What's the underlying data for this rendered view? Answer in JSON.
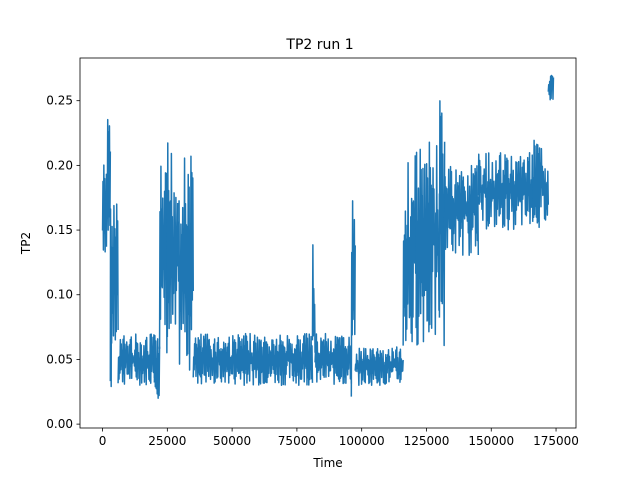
{
  "chart_data": {
    "type": "line",
    "title": "TP2 run 1",
    "xlabel": "Time",
    "ylabel": "TP2",
    "xlim": [
      -8700,
      182700
    ],
    "ylim": [
      -0.003,
      0.283
    ],
    "grid": false,
    "legend": "none",
    "x_ticks": [
      0,
      25000,
      50000,
      75000,
      100000,
      125000,
      150000,
      175000
    ],
    "x_tick_labels": [
      "0",
      "25000",
      "50000",
      "75000",
      "100000",
      "125000",
      "150000",
      "175000"
    ],
    "y_ticks": [
      0.0,
      0.05,
      0.1,
      0.15,
      0.2,
      0.25
    ],
    "y_tick_labels": [
      "0.00",
      "0.05",
      "0.10",
      "0.15",
      "0.20",
      "0.25"
    ],
    "series": [
      {
        "color": "#1f77b4",
        "segments": [
          {
            "x0": 0,
            "x1": 1500,
            "lo": 0.13,
            "hi": 0.21
          },
          {
            "x0": 1500,
            "x1": 3000,
            "lo": 0.12,
            "hi": 0.24
          },
          {
            "x0": 3000,
            "x1": 3500,
            "lo": 0.02,
            "hi": 0.17
          },
          {
            "x0": 3500,
            "x1": 6000,
            "lo": 0.05,
            "hi": 0.18
          },
          {
            "x0": 6000,
            "x1": 20000,
            "lo": 0.03,
            "hi": 0.07
          },
          {
            "x0": 20000,
            "x1": 22000,
            "lo": 0.02,
            "hi": 0.07
          },
          {
            "x0": 22000,
            "x1": 25000,
            "lo": 0.05,
            "hi": 0.2
          },
          {
            "x0": 25000,
            "x1": 29000,
            "lo": 0.04,
            "hi": 0.22
          },
          {
            "x0": 29000,
            "x1": 35000,
            "lo": 0.04,
            "hi": 0.21
          },
          {
            "x0": 35000,
            "x1": 81000,
            "lo": 0.03,
            "hi": 0.07
          },
          {
            "x0": 81000,
            "x1": 82000,
            "lo": 0.04,
            "hi": 0.14
          },
          {
            "x0": 82000,
            "x1": 96000,
            "lo": 0.03,
            "hi": 0.07
          },
          {
            "x0": 96000,
            "x1": 97500,
            "lo": 0.01,
            "hi": 0.19
          },
          {
            "x0": 97500,
            "x1": 116000,
            "lo": 0.03,
            "hi": 0.06
          },
          {
            "x0": 116000,
            "x1": 121000,
            "lo": 0.05,
            "hi": 0.21
          },
          {
            "x0": 121000,
            "x1": 130000,
            "lo": 0.06,
            "hi": 0.22
          },
          {
            "x0": 130000,
            "x1": 132000,
            "lo": 0.06,
            "hi": 0.26
          },
          {
            "x0": 132000,
            "x1": 145000,
            "lo": 0.13,
            "hi": 0.2
          },
          {
            "x0": 145000,
            "x1": 166000,
            "lo": 0.15,
            "hi": 0.21
          },
          {
            "x0": 166000,
            "x1": 172000,
            "lo": 0.15,
            "hi": 0.22
          },
          {
            "x0": 172000,
            "x1": 174000,
            "lo": 0.25,
            "hi": 0.27
          }
        ]
      }
    ]
  }
}
